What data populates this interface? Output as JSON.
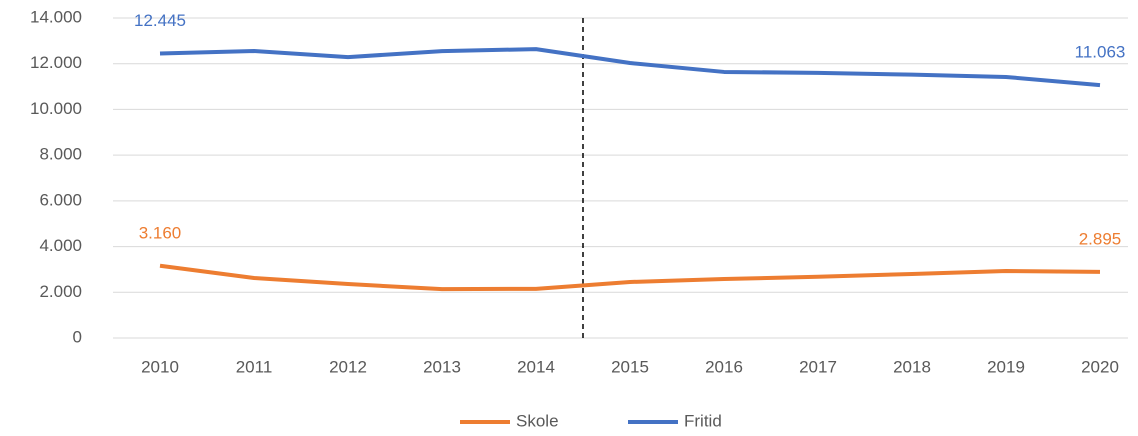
{
  "chart_data": {
    "type": "line",
    "categories": [
      "2010",
      "2011",
      "2012",
      "2013",
      "2014",
      "2015",
      "2016",
      "2017",
      "2018",
      "2019",
      "2020"
    ],
    "series": [
      {
        "name": "Skole",
        "color": "#ed7d31",
        "values": [
          3160,
          2625,
          2360,
          2140,
          2150,
          2450,
          2580,
          2680,
          2800,
          2930,
          2895
        ],
        "value_labels": [
          "3.160",
          null,
          null,
          null,
          null,
          null,
          null,
          null,
          null,
          null,
          "2.895"
        ]
      },
      {
        "name": "Fritid",
        "color": "#4472c4",
        "values": [
          12445,
          12555,
          12290,
          12550,
          12640,
          12030,
          11640,
          11600,
          11520,
          11420,
          11063
        ],
        "value_labels": [
          "12.445",
          null,
          null,
          null,
          null,
          null,
          null,
          null,
          null,
          null,
          "11.063"
        ]
      }
    ],
    "ylim": [
      0,
      14000
    ],
    "yticks": [
      0,
      {
        "value": 2000,
        "label": "2.000"
      },
      {
        "value": 4000,
        "label": "4.000"
      },
      {
        "value": 6000,
        "label": "6.000"
      },
      {
        "value": 8000,
        "label": "8.000"
      },
      {
        "value": 10000,
        "label": "10.000"
      },
      {
        "value": 12000,
        "label": "12.000"
      },
      {
        "value": 14000,
        "label": "14.000"
      }
    ],
    "grid": true,
    "legend": "bottom"
  }
}
